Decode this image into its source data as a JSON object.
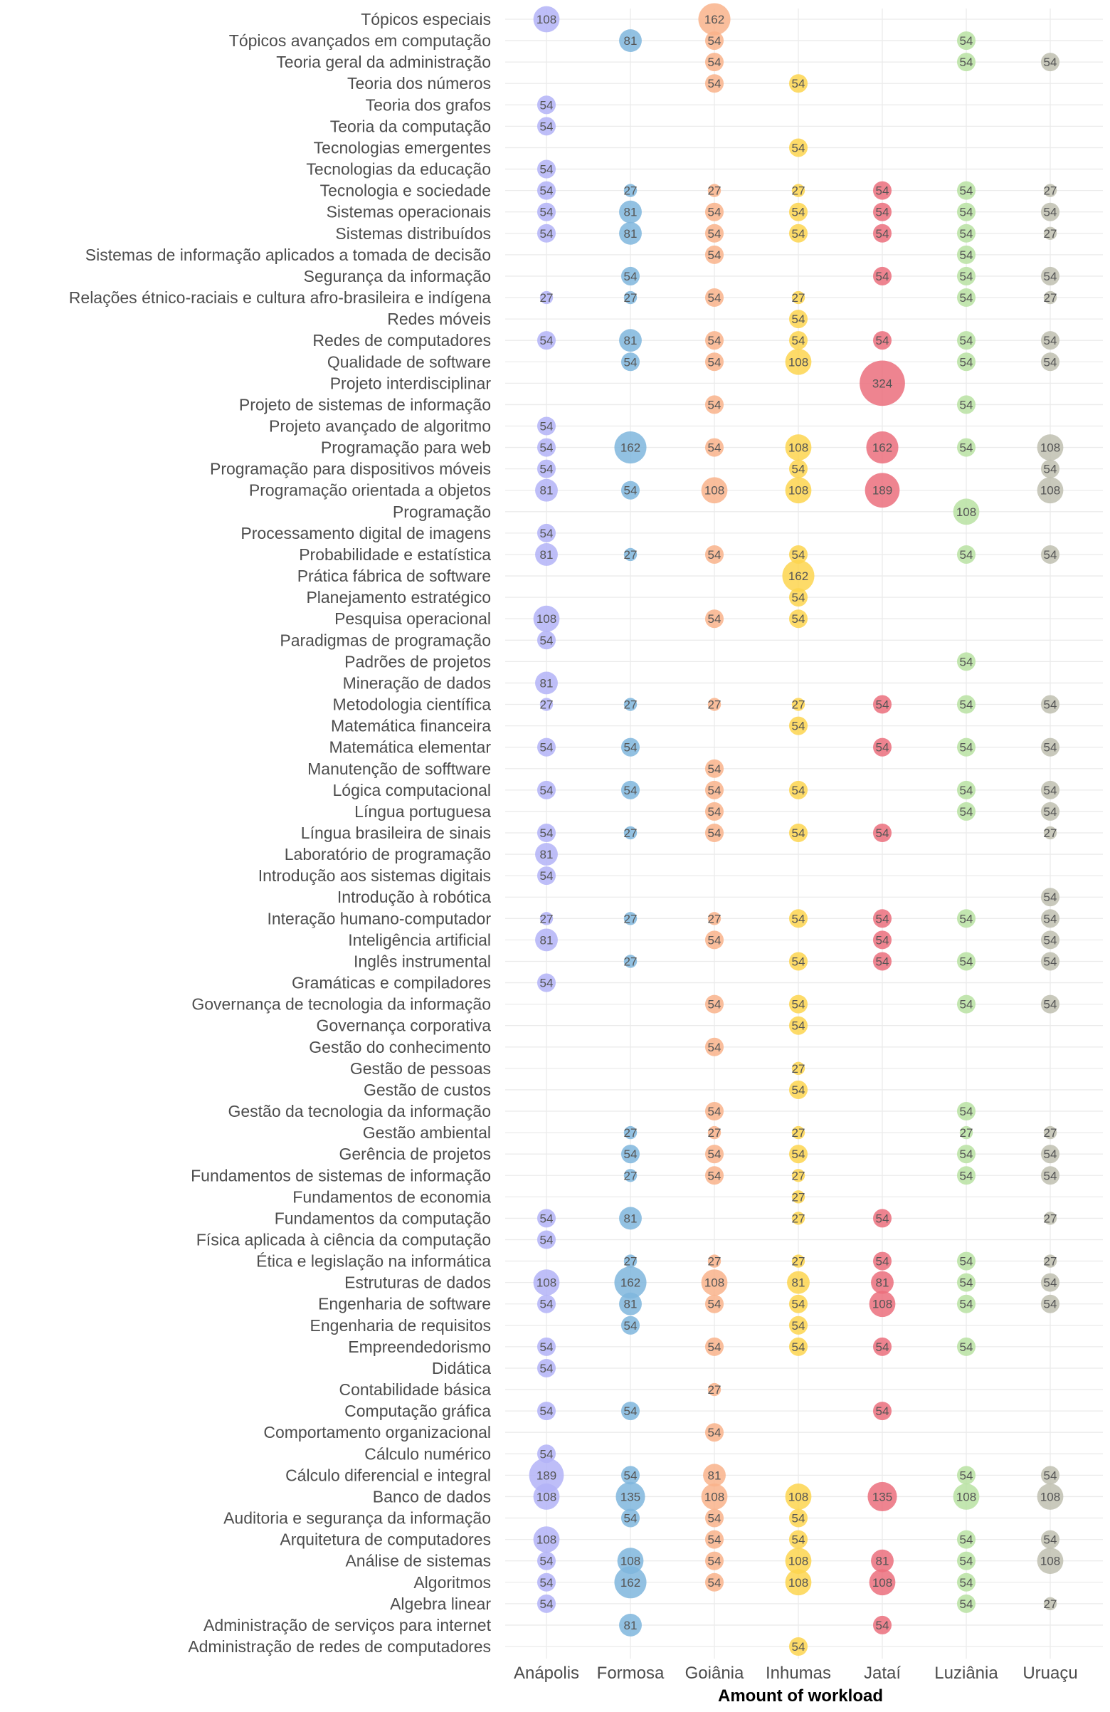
{
  "chart_data": {
    "type": "scatter",
    "title": "",
    "xlabel": "Amount of workload",
    "ylabel": "",
    "grid": true,
    "legend": "none",
    "campuses": [
      "Anápolis",
      "Formosa",
      "Goiânia",
      "Inhumas",
      "Jataí",
      "Luziânia",
      "Uruaçu"
    ],
    "colors": {
      "Anápolis": "#b3b3f7",
      "Formosa": "#7fb6dd",
      "Goiânia": "#f9b38b",
      "Inhumas": "#fdd54f",
      "Jataí": "#eb6f7c",
      "Luziânia": "#b8e2a2",
      "Uruaçu": "#bfbfb0"
    },
    "rows": [
      {
        "label": "Tópicos especiais",
        "values": [
          108,
          null,
          162,
          null,
          null,
          null,
          null
        ]
      },
      {
        "label": "Tópicos avançados em computação",
        "values": [
          null,
          81,
          54,
          null,
          null,
          54,
          null
        ]
      },
      {
        "label": "Teoria geral da administração",
        "values": [
          null,
          null,
          54,
          null,
          null,
          54,
          54
        ]
      },
      {
        "label": "Teoria dos números",
        "values": [
          null,
          null,
          54,
          54,
          null,
          null,
          null
        ]
      },
      {
        "label": "Teoria dos grafos",
        "values": [
          54,
          null,
          null,
          null,
          null,
          null,
          null
        ]
      },
      {
        "label": "Teoria da computação",
        "values": [
          54,
          null,
          null,
          null,
          null,
          null,
          null
        ]
      },
      {
        "label": "Tecnologias emergentes",
        "values": [
          null,
          null,
          null,
          54,
          null,
          null,
          null
        ]
      },
      {
        "label": "Tecnologias da educação",
        "values": [
          54,
          null,
          null,
          null,
          null,
          null,
          null
        ]
      },
      {
        "label": "Tecnologia e sociedade",
        "values": [
          54,
          27,
          27,
          27,
          54,
          54,
          27
        ]
      },
      {
        "label": "Sistemas operacionais",
        "values": [
          54,
          81,
          54,
          54,
          54,
          54,
          54
        ]
      },
      {
        "label": "Sistemas distribuídos",
        "values": [
          54,
          81,
          54,
          54,
          54,
          54,
          27
        ]
      },
      {
        "label": "Sistemas de informação aplicados a tomada de decisão",
        "values": [
          null,
          null,
          54,
          null,
          null,
          54,
          null
        ]
      },
      {
        "label": "Segurança da informação",
        "values": [
          null,
          54,
          null,
          null,
          54,
          54,
          54
        ]
      },
      {
        "label": "Relações étnico-raciais e cultura afro-brasileira e indígena",
        "values": [
          27,
          27,
          54,
          27,
          null,
          54,
          27
        ]
      },
      {
        "label": "Redes móveis",
        "values": [
          null,
          null,
          null,
          54,
          null,
          null,
          null
        ]
      },
      {
        "label": "Redes de computadores",
        "values": [
          54,
          81,
          54,
          54,
          54,
          54,
          54
        ]
      },
      {
        "label": "Qualidade de software",
        "values": [
          null,
          54,
          54,
          108,
          null,
          54,
          54
        ]
      },
      {
        "label": "Projeto interdisciplinar",
        "values": [
          null,
          null,
          null,
          null,
          324,
          null,
          null
        ]
      },
      {
        "label": "Projeto de sistemas de informação",
        "values": [
          null,
          null,
          54,
          null,
          null,
          54,
          null
        ]
      },
      {
        "label": "Projeto avançado de algoritmo",
        "values": [
          54,
          null,
          null,
          null,
          null,
          null,
          null
        ]
      },
      {
        "label": "Programação para web",
        "values": [
          54,
          162,
          54,
          108,
          162,
          54,
          108
        ]
      },
      {
        "label": "Programação para dispositivos móveis",
        "values": [
          54,
          null,
          null,
          54,
          null,
          null,
          54
        ]
      },
      {
        "label": "Programação orientada a objetos",
        "values": [
          81,
          54,
          108,
          108,
          189,
          null,
          108
        ]
      },
      {
        "label": "Programação",
        "values": [
          null,
          null,
          null,
          null,
          null,
          108,
          null
        ]
      },
      {
        "label": "Processamento digital de imagens",
        "values": [
          54,
          null,
          null,
          null,
          null,
          null,
          null
        ]
      },
      {
        "label": "Probabilidade e estatística",
        "values": [
          81,
          27,
          54,
          54,
          null,
          54,
          54
        ]
      },
      {
        "label": "Prática fábrica de software",
        "values": [
          null,
          null,
          null,
          162,
          null,
          null,
          null
        ]
      },
      {
        "label": "Planejamento estratégico",
        "values": [
          null,
          null,
          null,
          54,
          null,
          null,
          null
        ]
      },
      {
        "label": "Pesquisa operacional",
        "values": [
          108,
          null,
          54,
          54,
          null,
          null,
          null
        ]
      },
      {
        "label": "Paradigmas de programação",
        "values": [
          54,
          null,
          null,
          null,
          null,
          null,
          null
        ]
      },
      {
        "label": "Padrões de projetos",
        "values": [
          null,
          null,
          null,
          null,
          null,
          54,
          null
        ]
      },
      {
        "label": "Mineração de dados",
        "values": [
          81,
          null,
          null,
          null,
          null,
          null,
          null
        ]
      },
      {
        "label": "Metodologia científica",
        "values": [
          27,
          27,
          27,
          27,
          54,
          54,
          54
        ]
      },
      {
        "label": "Matemática financeira",
        "values": [
          null,
          null,
          null,
          54,
          null,
          null,
          null
        ]
      },
      {
        "label": "Matemática elementar",
        "values": [
          54,
          54,
          null,
          null,
          54,
          54,
          54
        ]
      },
      {
        "label": "Manutenção de sofftware",
        "values": [
          null,
          null,
          54,
          null,
          null,
          null,
          null
        ]
      },
      {
        "label": "Lógica computacional",
        "values": [
          54,
          54,
          54,
          54,
          null,
          54,
          54
        ]
      },
      {
        "label": "Língua portuguesa",
        "values": [
          null,
          null,
          54,
          null,
          null,
          54,
          54
        ]
      },
      {
        "label": "Língua brasileira de sinais",
        "values": [
          54,
          27,
          54,
          54,
          54,
          null,
          27
        ]
      },
      {
        "label": "Laboratório de programação",
        "values": [
          81,
          null,
          null,
          null,
          null,
          null,
          null
        ]
      },
      {
        "label": "Introdução aos sistemas digitais",
        "values": [
          54,
          null,
          null,
          null,
          null,
          null,
          null
        ]
      },
      {
        "label": "Introdução à robótica",
        "values": [
          null,
          null,
          null,
          null,
          null,
          null,
          54
        ]
      },
      {
        "label": "Interação humano-computador",
        "values": [
          27,
          27,
          27,
          54,
          54,
          54,
          54
        ]
      },
      {
        "label": "Inteligência artificial",
        "values": [
          81,
          null,
          54,
          null,
          54,
          null,
          54
        ]
      },
      {
        "label": "Inglês instrumental",
        "values": [
          null,
          27,
          null,
          54,
          54,
          54,
          54
        ]
      },
      {
        "label": "Gramáticas e compiladores",
        "values": [
          54,
          null,
          null,
          null,
          null,
          null,
          null
        ]
      },
      {
        "label": "Governança de tecnologia da informação",
        "values": [
          null,
          null,
          54,
          54,
          null,
          54,
          54
        ]
      },
      {
        "label": "Governança corporativa",
        "values": [
          null,
          null,
          null,
          54,
          null,
          null,
          null
        ]
      },
      {
        "label": "Gestão do conhecimento",
        "values": [
          null,
          null,
          54,
          null,
          null,
          null,
          null
        ]
      },
      {
        "label": "Gestão de pessoas",
        "values": [
          null,
          null,
          null,
          27,
          null,
          null,
          null
        ]
      },
      {
        "label": "Gestão de custos",
        "values": [
          null,
          null,
          null,
          54,
          null,
          null,
          null
        ]
      },
      {
        "label": "Gestão da tecnologia da informação",
        "values": [
          null,
          null,
          54,
          null,
          null,
          54,
          null
        ]
      },
      {
        "label": "Gestão ambiental",
        "values": [
          null,
          27,
          27,
          27,
          null,
          27,
          27
        ]
      },
      {
        "label": "Gerência de projetos",
        "values": [
          null,
          54,
          54,
          54,
          null,
          54,
          54
        ]
      },
      {
        "label": "Fundamentos de sistemas de informação",
        "values": [
          null,
          27,
          54,
          27,
          null,
          54,
          54
        ]
      },
      {
        "label": "Fundamentos de economia",
        "values": [
          null,
          null,
          null,
          27,
          null,
          null,
          null
        ]
      },
      {
        "label": "Fundamentos da computação",
        "values": [
          54,
          81,
          null,
          27,
          54,
          null,
          27
        ]
      },
      {
        "label": "Física aplicada à ciência da computação",
        "values": [
          54,
          null,
          null,
          null,
          null,
          null,
          null
        ]
      },
      {
        "label": "Ética e legislação na informática",
        "values": [
          null,
          27,
          27,
          27,
          54,
          54,
          27
        ]
      },
      {
        "label": "Estruturas de dados",
        "values": [
          108,
          162,
          108,
          81,
          81,
          54,
          54
        ]
      },
      {
        "label": "Engenharia de software",
        "values": [
          54,
          81,
          54,
          54,
          108,
          54,
          54
        ]
      },
      {
        "label": "Engenharia de requisitos",
        "values": [
          null,
          54,
          null,
          54,
          null,
          null,
          null
        ]
      },
      {
        "label": "Empreendedorismo",
        "values": [
          54,
          null,
          54,
          54,
          54,
          54,
          null
        ]
      },
      {
        "label": "Didática",
        "values": [
          54,
          null,
          null,
          null,
          null,
          null,
          null
        ]
      },
      {
        "label": "Contabilidade básica",
        "values": [
          null,
          null,
          27,
          null,
          null,
          null,
          null
        ]
      },
      {
        "label": "Computação gráfica",
        "values": [
          54,
          54,
          null,
          null,
          54,
          null,
          null
        ]
      },
      {
        "label": "Comportamento organizacional",
        "values": [
          null,
          null,
          54,
          null,
          null,
          null,
          null
        ]
      },
      {
        "label": "Cálculo numérico",
        "values": [
          54,
          null,
          null,
          null,
          null,
          null,
          null
        ]
      },
      {
        "label": "Cálculo diferencial e integral",
        "values": [
          189,
          54,
          81,
          null,
          null,
          54,
          54
        ]
      },
      {
        "label": "Banco de dados",
        "values": [
          108,
          135,
          108,
          108,
          135,
          108,
          108
        ]
      },
      {
        "label": "Auditoria e segurança da informação",
        "values": [
          null,
          54,
          54,
          54,
          null,
          null,
          null
        ]
      },
      {
        "label": "Arquitetura de computadores",
        "values": [
          108,
          null,
          54,
          54,
          null,
          54,
          54
        ]
      },
      {
        "label": "Análise de sistemas",
        "values": [
          54,
          108,
          54,
          108,
          81,
          54,
          108
        ]
      },
      {
        "label": "Algoritmos",
        "values": [
          54,
          162,
          54,
          108,
          108,
          54,
          null
        ]
      },
      {
        "label": "Algebra linear",
        "values": [
          54,
          null,
          null,
          null,
          null,
          54,
          27
        ]
      },
      {
        "label": "Administração de serviços para internet",
        "values": [
          null,
          81,
          null,
          null,
          54,
          null,
          null
        ]
      },
      {
        "label": "Administração de redes de computadores",
        "values": [
          null,
          null,
          null,
          54,
          null,
          null,
          null
        ]
      }
    ]
  }
}
